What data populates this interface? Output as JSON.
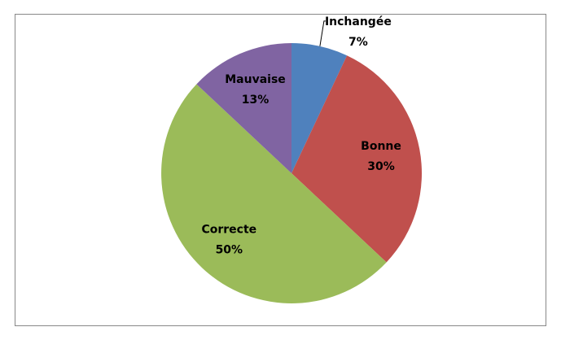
{
  "chart_data": {
    "type": "pie",
    "categories": [
      "Inchangée",
      "Bonne",
      "Correcte",
      "Mauvaise"
    ],
    "values": [
      7,
      30,
      50,
      13
    ],
    "value_labels": [
      "7%",
      "30%",
      "50%",
      "13%"
    ],
    "colors": [
      "#4f81bd",
      "#c0504d",
      "#9bbb59",
      "#8064a2"
    ]
  }
}
